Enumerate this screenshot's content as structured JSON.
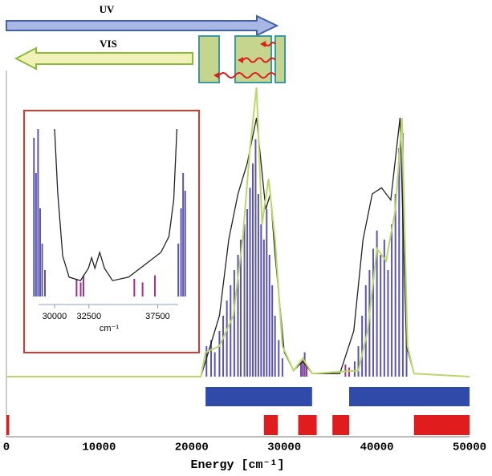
{
  "chart_data": [
    {
      "type": "line",
      "labels": [
        "UV",
        "VIS"
      ],
      "x_label": "Energy [cm⁻¹]",
      "xlim": [
        0,
        50000
      ],
      "xticks": [
        0,
        10000,
        20000,
        30000,
        40000,
        50000
      ],
      "ylim": [
        0,
        1
      ],
      "series": [
        {
          "color": "#222222",
          "x": [
            0,
            21000,
            21500,
            22000,
            23000,
            24000,
            25000,
            26000,
            27000,
            28000,
            28500,
            29000,
            30000,
            31000,
            32000,
            33000,
            36000,
            37500,
            38500,
            39500,
            40500,
            41500,
            42500,
            43200,
            44000,
            50000
          ],
          "values": [
            0,
            0,
            0.05,
            0.1,
            0.2,
            0.45,
            0.6,
            0.7,
            0.85,
            0.55,
            0.6,
            0.4,
            0.08,
            0.02,
            0.05,
            0.01,
            0.01,
            0.15,
            0.45,
            0.6,
            0.62,
            0.58,
            0.85,
            0.1,
            0.01,
            0
          ]
        },
        {
          "color": "#b8d86a",
          "x": [
            0,
            21000,
            21500,
            23000,
            24500,
            25500,
            26300,
            27000,
            27600,
            28300,
            29000,
            29800,
            31000,
            32000,
            33000,
            38000,
            39000,
            40000,
            41000,
            42000,
            42700,
            43300,
            44000,
            50000
          ],
          "values": [
            0,
            0,
            0.08,
            0.1,
            0.2,
            0.45,
            0.75,
            0.95,
            0.5,
            0.65,
            0.45,
            0.1,
            0.02,
            0.06,
            0.01,
            0.02,
            0.15,
            0.42,
            0.38,
            0.55,
            0.85,
            0.1,
            0.01,
            0
          ]
        }
      ],
      "sticks": [
        {
          "color": "#5b55b0",
          "x": [
            21600,
            22100,
            22500,
            23000,
            23400,
            23800,
            24200,
            24600,
            25000,
            25300,
            25700,
            26000,
            26300,
            26600,
            26900,
            27200,
            27500,
            27800,
            28100,
            28400,
            28700,
            29000,
            29400,
            29800,
            31800,
            32200,
            37600,
            38000,
            38400,
            38800,
            39200,
            39600,
            40000,
            40400,
            40800,
            41200,
            41600,
            42000,
            42400,
            42800,
            43200
          ],
          "values": [
            0.1,
            0.12,
            0.08,
            0.15,
            0.2,
            0.25,
            0.3,
            0.35,
            0.4,
            0.45,
            0.5,
            0.55,
            0.62,
            0.7,
            0.78,
            0.6,
            0.5,
            0.45,
            0.55,
            0.4,
            0.3,
            0.2,
            0.12,
            0.06,
            0.05,
            0.08,
            0.05,
            0.1,
            0.2,
            0.3,
            0.35,
            0.42,
            0.48,
            0.4,
            0.45,
            0.35,
            0.5,
            0.6,
            0.75,
            0.8,
            0.15
          ]
        },
        {
          "color": "#a0308a",
          "x": [
            32000,
            32400,
            36600,
            37000
          ],
          "values": [
            0.06,
            0.04,
            0.04,
            0.03
          ]
        }
      ],
      "bands": [
        {
          "color": "#2f4aa8",
          "spans": [
            [
              21500,
              33000
            ],
            [
              37000,
              50000
            ]
          ]
        },
        {
          "color": "#e01c1c",
          "spans": [
            [
              0,
              300
            ],
            [
              27800,
              29300
            ],
            [
              31500,
              33500
            ],
            [
              35200,
              37000
            ],
            [
              44000,
              50000
            ]
          ]
        }
      ]
    },
    {
      "type": "line",
      "x_label": "cm⁻¹",
      "xlim": [
        28250,
        39750
      ],
      "xticks": [
        30000,
        32500,
        37500
      ],
      "ylim": [
        0,
        1
      ],
      "series": [
        {
          "color": "#222222",
          "x": [
            30000,
            30230,
            30590,
            31060,
            31880,
            32460,
            32700,
            32930,
            33280,
            33630,
            34220,
            35390,
            36560,
            37730,
            38320,
            38670,
            38900
          ],
          "values": [
            0.95,
            0.59,
            0.23,
            0.11,
            0.09,
            0.16,
            0.22,
            0.16,
            0.25,
            0.16,
            0.09,
            0.11,
            0.18,
            0.25,
            0.34,
            0.55,
            0.95
          ]
        }
      ],
      "sticks": [
        {
          "color": "#5b55b0",
          "x": [
            28500,
            28650,
            28800,
            28950,
            29100,
            29300,
            39000,
            39200,
            39350,
            39500
          ],
          "values": [
            0.9,
            0.7,
            0.95,
            0.5,
            0.3,
            0.15,
            0.3,
            0.5,
            0.7,
            0.6
          ]
        },
        {
          "color": "#a0308a",
          "x": [
            31600,
            31900,
            32100,
            35800,
            36400,
            37300
          ],
          "values": [
            0.1,
            0.08,
            0.12,
            0.1,
            0.08,
            0.12
          ]
        }
      ],
      "bands": []
    }
  ]
}
